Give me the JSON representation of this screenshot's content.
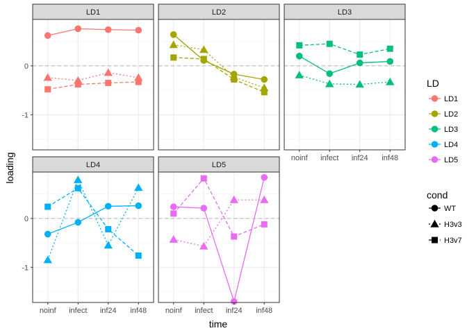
{
  "chart_data": {
    "type": "line",
    "facet_by": "LD",
    "xlabel": "time",
    "ylabel": "loading",
    "categories": [
      "noinf",
      "infect",
      "inf24",
      "inf48"
    ],
    "y_ticks": [
      0,
      -1
    ],
    "y_tick_labels": [
      "0",
      "-1"
    ],
    "ylim": [
      -1.72,
      0.95
    ],
    "grid": true,
    "reference_line_y": 0,
    "legend_placement": "right",
    "panels": [
      {
        "label": "LD1",
        "color": "#F8766D",
        "series": [
          {
            "name": "WT",
            "values": [
              0.62,
              0.76,
              0.74,
              0.73
            ]
          },
          {
            "name": "H3v3",
            "values": [
              -0.24,
              -0.3,
              -0.14,
              -0.24
            ]
          },
          {
            "name": "H3v7",
            "values": [
              -0.48,
              -0.38,
              -0.35,
              -0.33
            ]
          }
        ]
      },
      {
        "label": "LD2",
        "color": "#A3A500",
        "series": [
          {
            "name": "WT",
            "values": [
              0.64,
              0.11,
              -0.17,
              -0.28
            ]
          },
          {
            "name": "H3v3",
            "values": [
              0.43,
              0.33,
              -0.23,
              -0.45
            ]
          },
          {
            "name": "H3v7",
            "values": [
              0.17,
              0.14,
              -0.28,
              -0.54
            ]
          }
        ]
      },
      {
        "label": "LD3",
        "color": "#00BF7D",
        "series": [
          {
            "name": "WT",
            "values": [
              0.2,
              -0.16,
              0.06,
              0.09
            ]
          },
          {
            "name": "H3v3",
            "values": [
              -0.19,
              -0.37,
              -0.38,
              -0.33
            ]
          },
          {
            "name": "H3v7",
            "values": [
              0.42,
              0.45,
              0.23,
              0.35
            ]
          }
        ]
      },
      {
        "label": "LD4",
        "color": "#00B0F6",
        "series": [
          {
            "name": "WT",
            "values": [
              -0.32,
              -0.08,
              0.25,
              0.26
            ]
          },
          {
            "name": "H3v3",
            "values": [
              -0.85,
              0.79,
              -0.55,
              0.63
            ]
          },
          {
            "name": "H3v7",
            "values": [
              0.24,
              0.62,
              -0.22,
              -0.76
            ]
          }
        ]
      },
      {
        "label": "LD5",
        "color": "#E76BF3",
        "series": [
          {
            "name": "WT",
            "values": [
              0.24,
              0.21,
              -1.7,
              0.84
            ]
          },
          {
            "name": "H3v3",
            "values": [
              -0.43,
              -0.57,
              0.38,
              0.38
            ]
          },
          {
            "name": "H3v7",
            "values": [
              0.1,
              0.82,
              -0.37,
              -0.12
            ]
          }
        ]
      }
    ],
    "legend": {
      "color_title": "LD",
      "color_entries": [
        {
          "label": "LD1",
          "color": "#F8766D"
        },
        {
          "label": "LD2",
          "color": "#A3A500"
        },
        {
          "label": "LD3",
          "color": "#00BF7D"
        },
        {
          "label": "LD4",
          "color": "#00B0F6"
        },
        {
          "label": "LD5",
          "color": "#E76BF3"
        }
      ],
      "shape_title": "cond",
      "shape_entries": [
        {
          "label": "WT",
          "shape": "circle",
          "linetype": "solid"
        },
        {
          "label": "H3v3",
          "shape": "triangle",
          "linetype": "dotted"
        },
        {
          "label": "H3v7",
          "shape": "square",
          "linetype": "dashed"
        }
      ]
    }
  }
}
